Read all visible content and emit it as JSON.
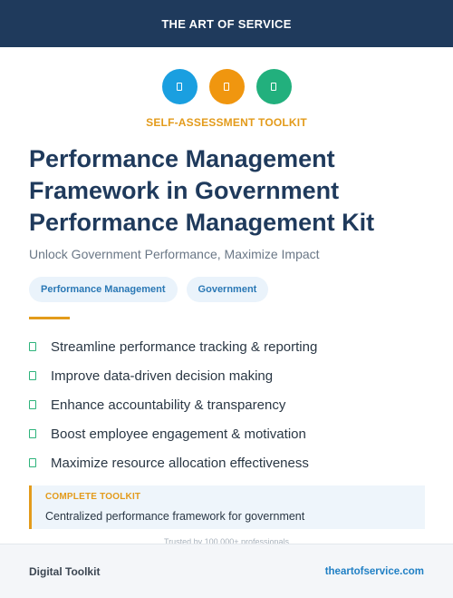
{
  "header": {
    "brand": "THE ART OF SERVICE"
  },
  "hero": {
    "icons": [
      {
        "name": "doc-icon",
        "color": "#1a9fe0"
      },
      {
        "name": "doc-icon",
        "color": "#f0960f"
      },
      {
        "name": "doc-icon",
        "color": "#22b07d"
      }
    ],
    "kicker": "SELF-ASSESSMENT TOOLKIT",
    "title_lines": [
      "Performance Management",
      "Framework in Government",
      "Performance Management Kit"
    ],
    "subtitle": "Unlock Government Performance, Maximize Impact"
  },
  "tags": [
    "Performance Management",
    "Government"
  ],
  "benefits": [
    "Streamline performance tracking & reporting",
    "Improve data-driven decision making",
    "Enhance accountability & transparency",
    "Boost employee engagement & motivation",
    "Maximize resource allocation effectiveness"
  ],
  "callout": {
    "heading": "COMPLETE TOOLKIT",
    "body": "Centralized performance framework for government"
  },
  "trusted": "Trusted by 100,000+ professionals",
  "footer": {
    "left": "Digital Toolkit",
    "right": "theartofservice.com"
  },
  "colors": {
    "navy": "#1f3a5c",
    "accent": "#e39b1b",
    "check": "#2db37b",
    "link": "#1f7fc4"
  }
}
